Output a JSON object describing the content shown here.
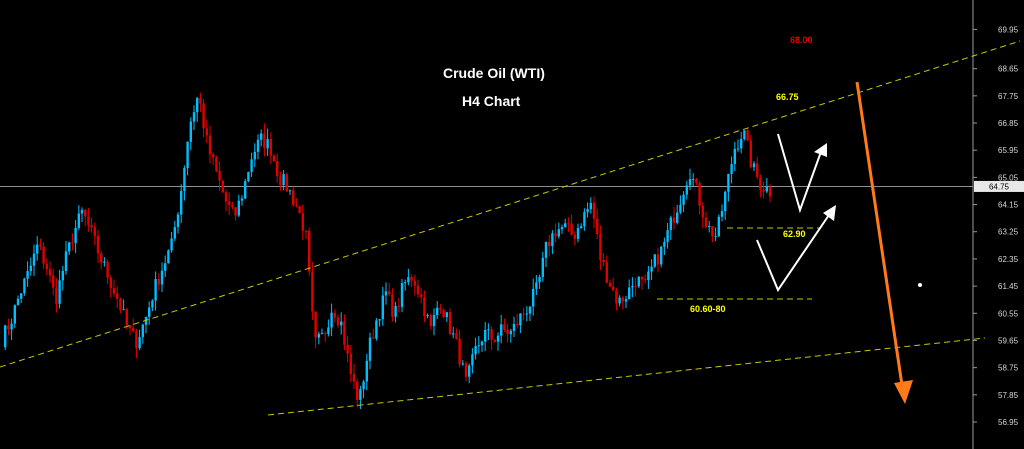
{
  "chart_data": {
    "type": "candlestick",
    "title": "Crude Oil (WTI)",
    "subtitle": "H4 Chart",
    "ylim": [
      56.5,
      69.8
    ],
    "y_ticks": [
      "69.95",
      "68.65",
      "67.75",
      "66.85",
      "65.95",
      "65.05",
      "64.15",
      "63.25",
      "62.35",
      "61.45",
      "60.55",
      "59.65",
      "58.75",
      "57.85",
      "56.95"
    ],
    "y_tick_values": [
      69.95,
      68.65,
      67.75,
      66.85,
      65.95,
      65.05,
      64.15,
      63.25,
      62.35,
      61.45,
      60.55,
      59.65,
      58.75,
      57.85,
      56.95
    ],
    "current_price": {
      "label": "64.75",
      "value": 64.75
    },
    "levels": [
      {
        "label": "68.00",
        "value": 68.0,
        "color": "#e00000"
      },
      {
        "label": "66.75",
        "value": 66.75,
        "color": "#ffff00"
      },
      {
        "label": "62.90",
        "value": 62.9,
        "color": "#ffff00"
      },
      {
        "label": "60.60-80",
        "value": 60.7,
        "color": "#ffff00"
      }
    ],
    "close_path": [
      59.7,
      60.3,
      61.2,
      61.9,
      62.8,
      62.1,
      61.0,
      62.2,
      63.2,
      63.9,
      63.2,
      62.4,
      61.7,
      61.0,
      60.1,
      59.6,
      60.3,
      61.3,
      62.1,
      62.8,
      64.5,
      66.8,
      67.8,
      66.1,
      65.2,
      64.3,
      63.7,
      64.6,
      65.8,
      66.3,
      66.1,
      65.1,
      64.7,
      64.1,
      63.2,
      59.5,
      59.8,
      60.8,
      60.2,
      58.6,
      57.6,
      59.3,
      60.4,
      61.2,
      60.5,
      61.5,
      61.8,
      61.0,
      60.0,
      61.0,
      60.2,
      59.4,
      58.2,
      59.3,
      59.9,
      59.7,
      60.0,
      59.9,
      60.4,
      60.8,
      61.4,
      62.8,
      63.3,
      63.4,
      63.1,
      63.7,
      64.2,
      62.4,
      61.6,
      60.9,
      61.2,
      61.7,
      61.4,
      62.2,
      62.7,
      63.6,
      64.4,
      65.3,
      64.4,
      63.4,
      63.1,
      64.5,
      66.0,
      66.6,
      65.4,
      64.8,
      64.6
    ],
    "series_colors": {
      "up": "#00bfff",
      "down": "#e00000"
    },
    "annotations": {
      "trendline_color": "#c8c800",
      "projection_arrow_color": "#ff7a1a",
      "path_arrow_color": "#ffffff"
    }
  }
}
